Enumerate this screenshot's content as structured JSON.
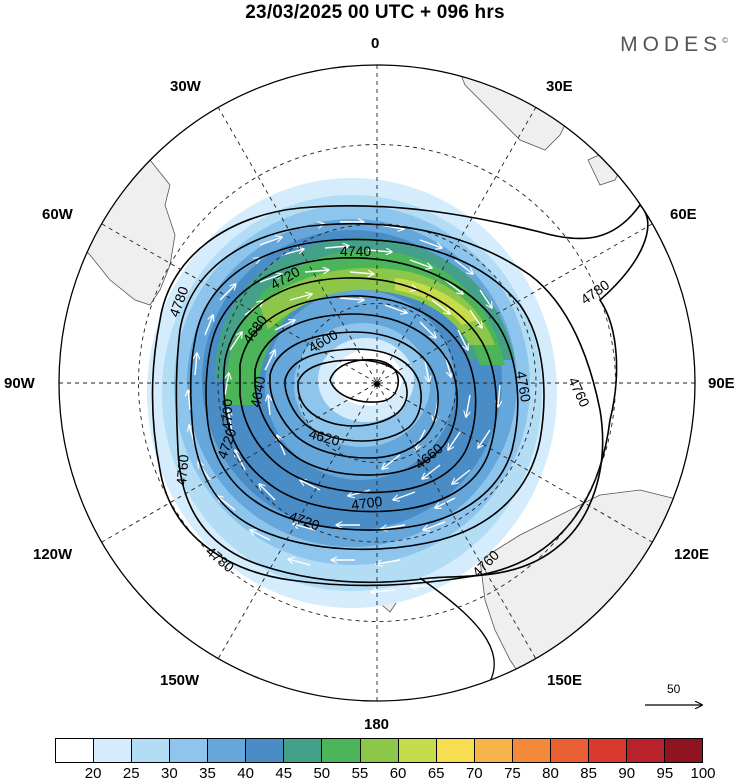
{
  "title": "23/03/2025  00 UTC  + 096 hrs",
  "brand": "MODES",
  "brand_mark": "©",
  "longitude_labels": [
    {
      "id": "lon-0",
      "text": "0"
    },
    {
      "id": "lon-30e",
      "text": "30E"
    },
    {
      "id": "lon-60e",
      "text": "60E"
    },
    {
      "id": "lon-90e",
      "text": "90E"
    },
    {
      "id": "lon-120e",
      "text": "120E"
    },
    {
      "id": "lon-150e",
      "text": "150E"
    },
    {
      "id": "lon-180",
      "text": "180"
    },
    {
      "id": "lon-150w",
      "text": "150W"
    },
    {
      "id": "lon-120w",
      "text": "120W"
    },
    {
      "id": "lon-90w",
      "text": "90W"
    },
    {
      "id": "lon-60w",
      "text": "60W"
    },
    {
      "id": "lon-30w",
      "text": "30W"
    }
  ],
  "contour_labels": [
    "4780",
    "4740",
    "4720",
    "4680",
    "4600",
    "4700",
    "4640",
    "4620",
    "4760",
    "4660",
    "4760",
    "4700",
    "4760",
    "4720",
    "4780",
    "4720",
    "4760",
    "4780"
  ],
  "wind_reference": {
    "value": "50"
  },
  "colorbar": {
    "ticks": [
      "20",
      "25",
      "30",
      "35",
      "40",
      "45",
      "50",
      "55",
      "60",
      "65",
      "70",
      "75",
      "80",
      "85",
      "90",
      "95",
      "100"
    ],
    "colors": [
      "#ffffff",
      "#d4ecfb",
      "#b3dcf5",
      "#8ec5ec",
      "#66a7db",
      "#4a8cc6",
      "#45a089",
      "#4cb559",
      "#8cc74a",
      "#c6dc4c",
      "#f7dd52",
      "#f6b44a",
      "#f38a3b",
      "#ea5f34",
      "#d93a2e",
      "#b8222a",
      "#8f1420"
    ]
  },
  "chart_data": {
    "type": "polar-stereographic map",
    "title": "23/03/2025  00 UTC  + 096 hrs",
    "hemisphere": "south",
    "contour_field": "geopotential height",
    "contour_levels_labeled": [
      4600,
      4620,
      4640,
      4660,
      4680,
      4700,
      4720,
      4740,
      4760,
      4780
    ],
    "shaded_field": "wind speed",
    "shading_bins": [
      20,
      25,
      30,
      35,
      40,
      45,
      50,
      55,
      60,
      65,
      70,
      75,
      80,
      85,
      90,
      95,
      100
    ],
    "wind_reference_vector": 50,
    "colormap": [
      "#ffffff",
      "#d4ecfb",
      "#b3dcf5",
      "#8ec5ec",
      "#66a7db",
      "#4a8cc6",
      "#45a089",
      "#4cb559",
      "#8cc74a",
      "#c6dc4c",
      "#f7dd52",
      "#f6b44a",
      "#f38a3b",
      "#ea5f34",
      "#d93a2e",
      "#b8222a",
      "#8f1420"
    ]
  }
}
